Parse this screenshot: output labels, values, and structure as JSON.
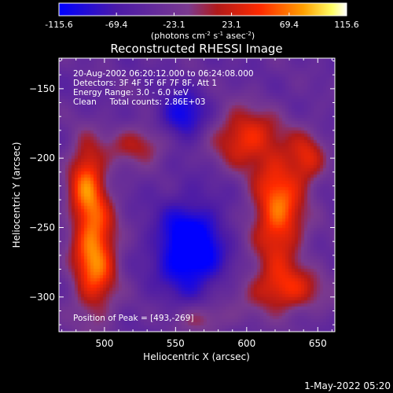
{
  "colorbar": {
    "ticks": [
      "-115.6",
      "-69.4",
      "-23.1",
      "23.1",
      "69.4",
      "115.6"
    ],
    "tick_values": [
      -115.6,
      -69.4,
      -23.1,
      23.1,
      69.4,
      115.6
    ],
    "unit_label_main": "(photons cm",
    "unit_sup1": "-2",
    "unit_mid1": " s",
    "unit_sup2": "-1",
    "unit_mid2": " asec",
    "unit_sup3": "-2",
    "unit_end": ")"
  },
  "chart_data": {
    "type": "heatmap",
    "title": "Reconstructed RHESSI Image",
    "xlabel": "Heliocentric X (arcsec)",
    "ylabel": "Heliocentric Y (arcsec)",
    "xlim": [
      468,
      662
    ],
    "ylim": [
      -325,
      -128
    ],
    "xticks": [
      500,
      550,
      600,
      650
    ],
    "yticks": [
      -150,
      -200,
      -250,
      -300
    ],
    "xtick_labels": [
      "500",
      "550",
      "600",
      "650"
    ],
    "ytick_labels": [
      "−150",
      "−200",
      "−250",
      "−300"
    ],
    "value_range": [
      -115.6,
      115.6
    ],
    "colormap": [
      "#0000ff",
      "#4b1aa8",
      "#7b3a8f",
      "#b01a1a",
      "#ff2a00",
      "#ffa000",
      "#ffff66",
      "#ffffff"
    ],
    "annotations": [
      "20-Aug-2002 06:20:12.000 to 06:24:08.000",
      "Detectors: 3F 4F 5F 6F 7F 8F, Att 1",
      "Energy Range: 3.0 - 6.0 keV",
      "Clean     Total counts: 2.86E+03"
    ],
    "peak_label": "Position of Peak = [493,-269]",
    "peak": [
      493,
      -269
    ],
    "sources": [
      {
        "x": 493,
        "y": -269,
        "sx": 11,
        "sy": 30,
        "amp": 115
      },
      {
        "x": 487,
        "y": -215,
        "sx": 9,
        "sy": 20,
        "amp": 85
      },
      {
        "x": 622,
        "y": -238,
        "sx": 13,
        "sy": 30,
        "amp": 105
      },
      {
        "x": 598,
        "y": -185,
        "sx": 16,
        "sy": 15,
        "amp": 80
      },
      {
        "x": 627,
        "y": -295,
        "sx": 20,
        "sy": 12,
        "amp": 70
      },
      {
        "x": 525,
        "y": -190,
        "sx": 16,
        "sy": 10,
        "amp": 55
      },
      {
        "x": 643,
        "y": -200,
        "sx": 9,
        "sy": 14,
        "amp": 60
      },
      {
        "x": 570,
        "y": -315,
        "sx": 14,
        "sy": 8,
        "amp": 45
      },
      {
        "x": 560,
        "y": -265,
        "sx": 16,
        "sy": 22,
        "amp": -110
      },
      {
        "x": 555,
        "y": -170,
        "sx": 12,
        "sy": 13,
        "amp": -70
      }
    ]
  },
  "footer": {
    "date": "1-May-2022 05:20"
  }
}
